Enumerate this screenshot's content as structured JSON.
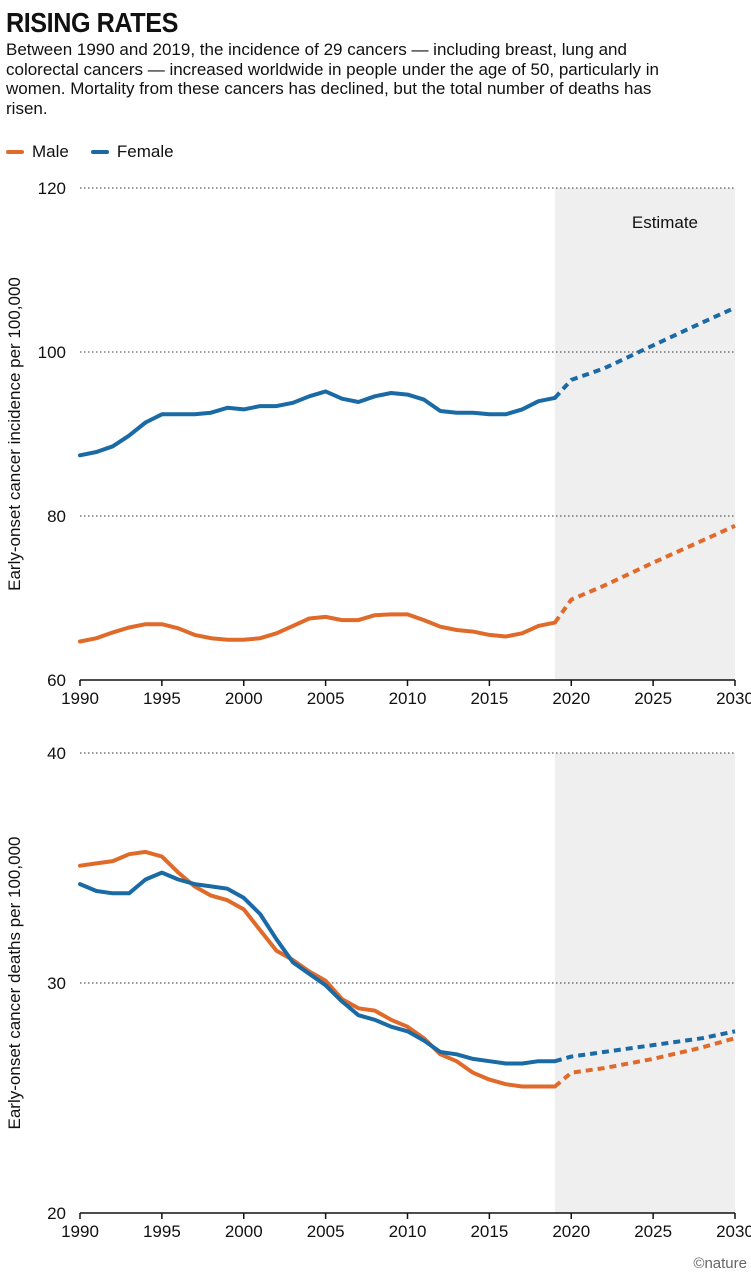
{
  "title": "RISING RATES",
  "subtitle": "Between 1990 and 2019, the incidence of 29 cancers — including breast, lung and colorectal cancers — increased worldwide in people under the age of 50, particularly in women. Mortality from these cancers has declined, but the total number of deaths has risen.",
  "legend": [
    {
      "name": "Male",
      "color": "#e06a2a"
    },
    {
      "name": "Female",
      "color": "#1a6aa6"
    }
  ],
  "credit": "©nature",
  "colors": {
    "male": "#e06a2a",
    "female": "#1a6aa6",
    "estimate_bg": "#efefef",
    "grid": "#333333"
  },
  "chart_data": [
    {
      "type": "line",
      "ylabel": "Early-onset cancer incidence per 100,000",
      "ylim": [
        60,
        120
      ],
      "yticks": [
        60,
        80,
        100,
        120
      ],
      "xlim": [
        1990,
        2030
      ],
      "xticks": [
        1990,
        1995,
        2000,
        2005,
        2010,
        2015,
        2020,
        2025,
        2030
      ],
      "estimate_region": {
        "from": 2019,
        "to": 2030,
        "label": "Estimate"
      },
      "series": [
        {
          "name": "Male",
          "observed": {
            "x": [
              1990,
              1991,
              1992,
              1993,
              1994,
              1995,
              1996,
              1997,
              1998,
              1999,
              2000,
              2001,
              2002,
              2003,
              2004,
              2005,
              2006,
              2007,
              2008,
              2009,
              2010,
              2011,
              2012,
              2013,
              2014,
              2015,
              2016,
              2017,
              2018,
              2019
            ],
            "y": [
              64.7,
              65.1,
              65.8,
              66.4,
              66.8,
              66.8,
              66.3,
              65.5,
              65.1,
              64.9,
              64.9,
              65.1,
              65.7,
              66.6,
              67.5,
              67.7,
              67.3,
              67.3,
              67.9,
              68.0,
              68.0,
              67.3,
              66.5,
              66.1,
              65.9,
              65.5,
              65.3,
              65.7,
              66.6,
              67.0
            ]
          },
          "estimate": {
            "x": [
              2019,
              2020,
              2022,
              2025,
              2028,
              2030
            ],
            "y": [
              67.0,
              69.8,
              71.5,
              74.3,
              77.0,
              78.8
            ]
          }
        },
        {
          "name": "Female",
          "observed": {
            "x": [
              1990,
              1991,
              1992,
              1993,
              1994,
              1995,
              1996,
              1997,
              1998,
              1999,
              2000,
              2001,
              2002,
              2003,
              2004,
              2005,
              2006,
              2007,
              2008,
              2009,
              2010,
              2011,
              2012,
              2013,
              2014,
              2015,
              2016,
              2017,
              2018,
              2019
            ],
            "y": [
              87.4,
              87.8,
              88.5,
              89.8,
              91.4,
              92.4,
              92.4,
              92.4,
              92.6,
              93.2,
              93.0,
              93.4,
              93.4,
              93.8,
              94.6,
              95.2,
              94.3,
              93.9,
              94.6,
              95.0,
              94.8,
              94.2,
              92.8,
              92.6,
              92.6,
              92.4,
              92.4,
              93.0,
              94.0,
              94.4
            ]
          },
          "estimate": {
            "x": [
              2019,
              2020,
              2022,
              2025,
              2028,
              2030
            ],
            "y": [
              94.4,
              96.6,
              98.0,
              100.8,
              103.6,
              105.4
            ]
          }
        }
      ]
    },
    {
      "type": "line",
      "ylabel": "Early-onset cancer deaths per 100,000",
      "ylim": [
        20,
        40
      ],
      "yticks": [
        20,
        30,
        40
      ],
      "xlim": [
        1990,
        2030
      ],
      "xticks": [
        1990,
        1995,
        2000,
        2005,
        2010,
        2015,
        2020,
        2025,
        2030
      ],
      "estimate_region": {
        "from": 2019,
        "to": 2030,
        "label": ""
      },
      "series": [
        {
          "name": "Male",
          "observed": {
            "x": [
              1990,
              1991,
              1992,
              1993,
              1994,
              1995,
              1996,
              1997,
              1998,
              1999,
              2000,
              2001,
              2002,
              2003,
              2004,
              2005,
              2006,
              2007,
              2008,
              2009,
              2010,
              2011,
              2012,
              2013,
              2014,
              2015,
              2016,
              2017,
              2018,
              2019
            ],
            "y": [
              35.1,
              35.2,
              35.3,
              35.6,
              35.7,
              35.5,
              34.8,
              34.2,
              33.8,
              33.6,
              33.2,
              32.3,
              31.4,
              31.0,
              30.5,
              30.1,
              29.3,
              28.9,
              28.8,
              28.4,
              28.1,
              27.6,
              26.9,
              26.6,
              26.1,
              25.8,
              25.6,
              25.5,
              25.5,
              25.5
            ]
          },
          "estimate": {
            "x": [
              2019,
              2020,
              2022,
              2025,
              2028,
              2030
            ],
            "y": [
              25.5,
              26.1,
              26.3,
              26.7,
              27.2,
              27.6
            ]
          }
        },
        {
          "name": "Female",
          "observed": {
            "x": [
              1990,
              1991,
              1992,
              1993,
              1994,
              1995,
              1996,
              1997,
              1998,
              1999,
              2000,
              2001,
              2002,
              2003,
              2004,
              2005,
              2006,
              2007,
              2008,
              2009,
              2010,
              2011,
              2012,
              2013,
              2014,
              2015,
              2016,
              2017,
              2018,
              2019
            ],
            "y": [
              34.3,
              34.0,
              33.9,
              33.9,
              34.5,
              34.8,
              34.5,
              34.3,
              34.2,
              34.1,
              33.7,
              33.0,
              31.9,
              30.9,
              30.4,
              29.9,
              29.2,
              28.6,
              28.4,
              28.1,
              27.9,
              27.5,
              27.0,
              26.9,
              26.7,
              26.6,
              26.5,
              26.5,
              26.6,
              26.6
            ]
          },
          "estimate": {
            "x": [
              2019,
              2020,
              2022,
              2025,
              2028,
              2030
            ],
            "y": [
              26.6,
              26.8,
              27.0,
              27.3,
              27.6,
              27.9
            ]
          }
        }
      ]
    }
  ]
}
